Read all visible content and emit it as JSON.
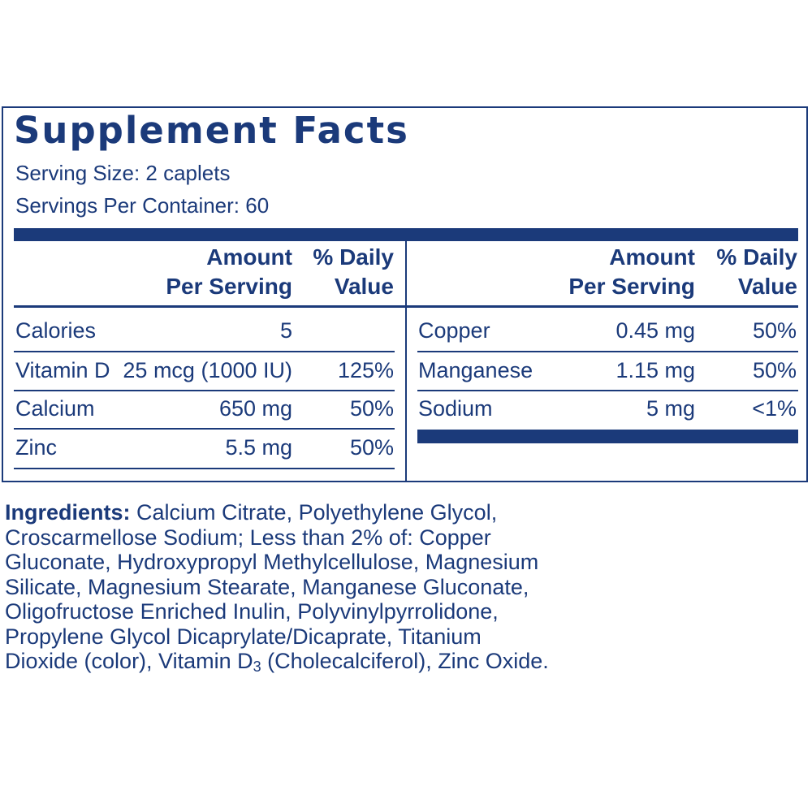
{
  "label": {
    "title": "Supplement Facts",
    "serving_size": "Serving Size: 2 caplets",
    "servings_per_container": "Servings Per Container: 60",
    "header": {
      "amount_line1": "Amount",
      "amount_line2": "Per Serving",
      "dv_line1": "% Daily",
      "dv_line2": "Value"
    },
    "left_rows": [
      {
        "nutrient": "Calories",
        "amount": "5",
        "dv": ""
      },
      {
        "nutrient": "Vitamin D",
        "amount": "25 mcg (1000 IU)",
        "dv": "125%"
      },
      {
        "nutrient": "Calcium",
        "amount": "650 mg",
        "dv": "50%"
      },
      {
        "nutrient": "Zinc",
        "amount": "5.5 mg",
        "dv": "50%"
      }
    ],
    "right_rows": [
      {
        "nutrient": "Copper",
        "amount": "0.45 mg",
        "dv": "50%"
      },
      {
        "nutrient": "Manganese",
        "amount": "1.15 mg",
        "dv": "50%"
      },
      {
        "nutrient": "Sodium",
        "amount": "5 mg",
        "dv": "<1%"
      }
    ]
  },
  "ingredients": {
    "heading": "Ingredients:",
    "line1": "Calcium Citrate, Polyethylene Glycol,",
    "line2": "Croscarmellose Sodium; Less than 2% of: Copper",
    "line3": "Gluconate, Hydroxypropyl Methylcellulose, Magnesium",
    "line4": "Silicate, Magnesium Stearate, Manganese Gluconate,",
    "line5": "Oligofructose Enriched Inulin, Polyvinylpyrrolidone,",
    "line6": "Propylene Glycol Dicaprylate/Dicaprate, Titanium",
    "line7_pre": "Dioxide (color), Vitamin D",
    "line7_sub": "3",
    "line7_post": " (Cholecalciferol), Zinc Oxide."
  },
  "colors": {
    "ink": "#1b3a7a",
    "background": "#ffffff"
  }
}
